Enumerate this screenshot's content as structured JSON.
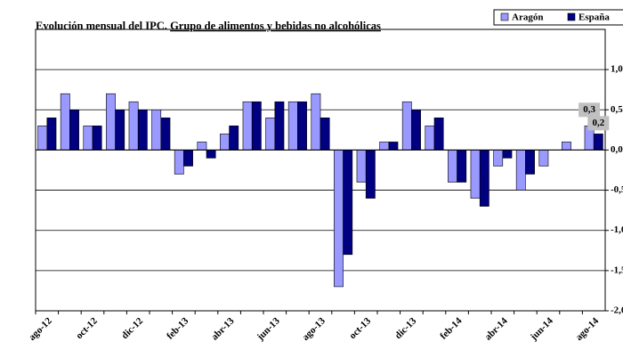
{
  "chart_data": {
    "type": "bar",
    "title": "Evolución mensual del IPC.",
    "subtitle": "Grupo de alimentos y bebidas no alcohólicas",
    "categories": [
      "ago-12",
      null,
      "oct-12",
      null,
      "dic-12",
      null,
      "feb-13",
      null,
      "abr-13",
      null,
      "jun-13",
      null,
      "ago-13",
      null,
      "oct-13",
      null,
      "dic-13",
      null,
      "feb-14",
      null,
      "abr-14",
      null,
      "jun-14",
      null,
      "ago-14"
    ],
    "series": [
      {
        "name": "Aragón",
        "color": "#9999ff",
        "values": [
          0.3,
          0.7,
          0.3,
          0.7,
          0.6,
          0.5,
          -0.3,
          0.1,
          0.2,
          0.6,
          0.4,
          0.6,
          0.7,
          -1.7,
          -0.4,
          0.1,
          0.6,
          0.3,
          -0.4,
          -0.6,
          -0.2,
          -0.5,
          -0.2,
          0.1,
          0.3
        ],
        "value_labels": [
          null,
          null,
          null,
          null,
          null,
          null,
          null,
          null,
          null,
          null,
          null,
          null,
          null,
          null,
          null,
          null,
          null,
          null,
          null,
          null,
          null,
          null,
          null,
          null,
          "0,3"
        ]
      },
      {
        "name": "España",
        "color": "#000080",
        "values": [
          0.4,
          0.5,
          0.3,
          0.5,
          0.5,
          0.4,
          -0.2,
          -0.1,
          0.3,
          0.6,
          0.6,
          0.6,
          0.4,
          -1.3,
          -0.6,
          0.1,
          0.5,
          0.4,
          -0.4,
          -0.7,
          -0.1,
          -0.3,
          0,
          0,
          0.2
        ],
        "value_labels": [
          null,
          null,
          null,
          null,
          null,
          null,
          null,
          null,
          null,
          null,
          null,
          null,
          null,
          null,
          null,
          null,
          null,
          null,
          null,
          null,
          null,
          null,
          null,
          null,
          "0,2"
        ]
      }
    ],
    "ylim": [
      -2,
      1.5
    ],
    "yticks": [
      {
        "value": -2,
        "label": "-2,0"
      },
      {
        "value": -1.5,
        "label": "-1,5"
      },
      {
        "value": -1,
        "label": "-1,0"
      },
      {
        "value": -0.5,
        "label": "-0,5"
      },
      {
        "value": 0,
        "label": "0,0"
      },
      {
        "value": 0.5,
        "label": "0,5"
      },
      {
        "value": 1,
        "label": "1,0"
      }
    ],
    "grid": true,
    "legend": "top-right"
  }
}
